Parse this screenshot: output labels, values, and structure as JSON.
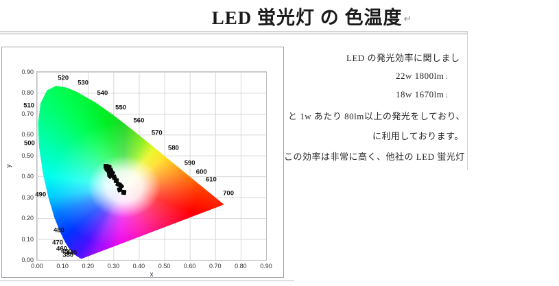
{
  "page": {
    "title": "LED 蛍光灯 の 色温度",
    "title_return_mark": "↵"
  },
  "right_text": {
    "lines": [
      {
        "text": "LED の発光効率に関しまし"
      },
      {
        "text": "22w 1800lm",
        "mark": "↓"
      },
      {
        "text": "18w 1670lm",
        "mark": "↓"
      },
      {
        "text": "と 1w あたり 80lm以上の発光をしており、"
      },
      {
        "text": "に利用しております。"
      },
      {
        "text": "この効率は非常に高く、他社の LED 蛍光灯"
      }
    ]
  },
  "colors": {
    "grid": "#d7d7d7",
    "panel_border": "#9aa1a8",
    "rule_gray": "#9b9b9b",
    "point_black": "#0a0a0a"
  },
  "chart_data": {
    "type": "scatter",
    "diagram": "CIE 1931 xy chromaticity diagram",
    "title": "",
    "xlabel": "x",
    "ylabel": "y",
    "xlim": [
      0.0,
      0.9
    ],
    "ylim": [
      0.0,
      0.9
    ],
    "grid": true,
    "x_ticks": [
      "0.00",
      "0.10",
      "0.20",
      "0.30",
      "0.40",
      "0.50",
      "0.60",
      "0.70",
      "0.80",
      "0.90"
    ],
    "y_ticks": [
      "0.00",
      "0.10",
      "0.20",
      "0.30",
      "0.40",
      "0.50",
      "0.60",
      "0.70",
      "0.80",
      "0.90"
    ],
    "wavelength_labels": [
      {
        "text": "520",
        "x": 0.103,
        "y": 0.87
      },
      {
        "text": "530",
        "x": 0.181,
        "y": 0.847
      },
      {
        "text": "540",
        "x": 0.257,
        "y": 0.797
      },
      {
        "text": "550",
        "x": 0.329,
        "y": 0.729
      },
      {
        "text": "560",
        "x": 0.4,
        "y": 0.666
      },
      {
        "text": "570",
        "x": 0.471,
        "y": 0.607
      },
      {
        "text": "580",
        "x": 0.536,
        "y": 0.534
      },
      {
        "text": "590",
        "x": 0.6,
        "y": 0.464
      },
      {
        "text": "600",
        "x": 0.646,
        "y": 0.419
      },
      {
        "text": "610",
        "x": 0.684,
        "y": 0.383
      },
      {
        "text": "700",
        "x": 0.752,
        "y": 0.317
      },
      {
        "text": "510",
        "x": -0.032,
        "y": 0.739
      },
      {
        "text": "500",
        "x": -0.03,
        "y": 0.557
      },
      {
        "text": "490",
        "x": 0.014,
        "y": 0.313
      },
      {
        "text": "480",
        "x": 0.086,
        "y": 0.142
      },
      {
        "text": "470",
        "x": 0.081,
        "y": 0.083
      },
      {
        "text": "460",
        "x": 0.097,
        "y": 0.053
      },
      {
        "text": "450",
        "x": 0.116,
        "y": 0.04
      },
      {
        "text": "440",
        "x": 0.135,
        "y": 0.033
      },
      {
        "text": "380",
        "x": 0.122,
        "y": 0.023
      }
    ],
    "led_points": [
      {
        "x": 0.272,
        "y": 0.45
      },
      {
        "x": 0.282,
        "y": 0.445
      },
      {
        "x": 0.276,
        "y": 0.432
      },
      {
        "x": 0.29,
        "y": 0.43
      },
      {
        "x": 0.283,
        "y": 0.418
      },
      {
        "x": 0.296,
        "y": 0.414
      },
      {
        "x": 0.287,
        "y": 0.404
      },
      {
        "x": 0.303,
        "y": 0.396
      },
      {
        "x": 0.312,
        "y": 0.378
      },
      {
        "x": 0.32,
        "y": 0.362
      },
      {
        "x": 0.33,
        "y": 0.352
      },
      {
        "x": 0.326,
        "y": 0.336
      },
      {
        "x": 0.342,
        "y": 0.325
      }
    ],
    "spectral_locus": [
      [
        0.1741,
        0.005
      ],
      [
        0.1566,
        0.0177
      ],
      [
        0.144,
        0.0297
      ],
      [
        0.1241,
        0.0578
      ],
      [
        0.1096,
        0.0868
      ],
      [
        0.0913,
        0.1327
      ],
      [
        0.0687,
        0.2007
      ],
      [
        0.0454,
        0.295
      ],
      [
        0.0235,
        0.4127
      ],
      [
        0.0082,
        0.5384
      ],
      [
        0.0039,
        0.6548
      ],
      [
        0.0139,
        0.7502
      ],
      [
        0.0389,
        0.812
      ],
      [
        0.0743,
        0.8338
      ],
      [
        0.1142,
        0.8262
      ],
      [
        0.1547,
        0.8059
      ],
      [
        0.2296,
        0.7543
      ],
      [
        0.3016,
        0.6923
      ],
      [
        0.3731,
        0.6245
      ],
      [
        0.4441,
        0.5547
      ],
      [
        0.5125,
        0.4866
      ],
      [
        0.5752,
        0.4242
      ],
      [
        0.627,
        0.3725
      ],
      [
        0.6658,
        0.334
      ],
      [
        0.6915,
        0.3083
      ],
      [
        0.714,
        0.2859
      ],
      [
        0.7347,
        0.2653
      ]
    ]
  }
}
